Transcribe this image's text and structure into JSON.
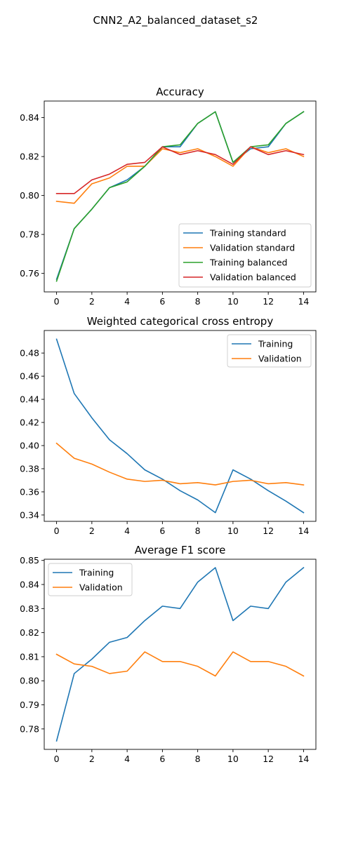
{
  "figure": {
    "suptitle": "CNN2_A2_balanced_dataset_s2"
  },
  "colors": {
    "blue": "#1f77b4",
    "orange": "#ff7f0e",
    "green": "#2ca02c",
    "red": "#d62728"
  },
  "chart_data": [
    {
      "type": "line",
      "title": "Accuracy",
      "xlabel": "",
      "ylabel": "",
      "x": [
        0,
        1,
        2,
        3,
        4,
        5,
        6,
        7,
        8,
        9,
        10,
        11,
        12,
        13,
        14
      ],
      "xlim": [
        -0.7,
        14.7
      ],
      "ylim": [
        0.7505,
        0.8485
      ],
      "xticks": [
        0,
        2,
        4,
        6,
        8,
        10,
        12,
        14
      ],
      "yticks": [
        0.76,
        0.78,
        0.8,
        0.82,
        0.84
      ],
      "ytick_labels": [
        "0.76",
        "0.78",
        "0.80",
        "0.82",
        "0.84"
      ],
      "grid": false,
      "legend": "lower-right",
      "series": [
        {
          "name": "Training standard",
          "color": "#1f77b4",
          "values": [
            0.757,
            0.783,
            0.793,
            0.804,
            0.808,
            0.815,
            0.825,
            0.825,
            0.837,
            0.843,
            0.817,
            0.824,
            0.825,
            0.837,
            0.843
          ]
        },
        {
          "name": "Validation standard",
          "color": "#ff7f0e",
          "values": [
            0.797,
            0.796,
            0.806,
            0.809,
            0.815,
            0.815,
            0.824,
            0.822,
            0.824,
            0.82,
            0.815,
            0.825,
            0.822,
            0.824,
            0.82
          ]
        },
        {
          "name": "Training balanced",
          "color": "#2ca02c",
          "values": [
            0.756,
            0.783,
            0.793,
            0.804,
            0.807,
            0.815,
            0.825,
            0.826,
            0.837,
            0.843,
            0.817,
            0.825,
            0.826,
            0.837,
            0.843
          ]
        },
        {
          "name": "Validation balanced",
          "color": "#d62728",
          "values": [
            0.801,
            0.801,
            0.808,
            0.811,
            0.816,
            0.817,
            0.825,
            0.821,
            0.823,
            0.821,
            0.816,
            0.825,
            0.821,
            0.823,
            0.821
          ]
        }
      ]
    },
    {
      "type": "line",
      "title": "Weighted categorical cross entropy",
      "xlabel": "",
      "ylabel": "",
      "x": [
        0,
        1,
        2,
        3,
        4,
        5,
        6,
        7,
        8,
        9,
        10,
        11,
        12,
        13,
        14
      ],
      "xlim": [
        -0.7,
        14.7
      ],
      "ylim": [
        0.3345,
        0.4995
      ],
      "xticks": [
        0,
        2,
        4,
        6,
        8,
        10,
        12,
        14
      ],
      "yticks": [
        0.34,
        0.36,
        0.38,
        0.4,
        0.42,
        0.44,
        0.46,
        0.48
      ],
      "ytick_labels": [
        "0.34",
        "0.36",
        "0.38",
        "0.40",
        "0.42",
        "0.44",
        "0.46",
        "0.48"
      ],
      "grid": false,
      "legend": "upper-right",
      "series": [
        {
          "name": "Training",
          "color": "#1f77b4",
          "values": [
            0.492,
            0.445,
            0.424,
            0.405,
            0.393,
            0.379,
            0.371,
            0.361,
            0.353,
            0.342,
            0.379,
            0.371,
            0.361,
            0.352,
            0.342
          ]
        },
        {
          "name": "Validation",
          "color": "#ff7f0e",
          "values": [
            0.402,
            0.389,
            0.384,
            0.377,
            0.371,
            0.369,
            0.37,
            0.367,
            0.368,
            0.366,
            0.369,
            0.37,
            0.367,
            0.368,
            0.366
          ]
        }
      ]
    },
    {
      "type": "line",
      "title": "Average F1 score",
      "xlabel": "",
      "ylabel": "",
      "x": [
        0,
        1,
        2,
        3,
        4,
        5,
        6,
        7,
        8,
        9,
        10,
        11,
        12,
        13,
        14
      ],
      "xlim": [
        -0.7,
        14.7
      ],
      "ylim": [
        0.7715,
        0.8505
      ],
      "xticks": [
        0,
        2,
        4,
        6,
        8,
        10,
        12,
        14
      ],
      "yticks": [
        0.78,
        0.79,
        0.8,
        0.81,
        0.82,
        0.83,
        0.84,
        0.85
      ],
      "ytick_labels": [
        "0.78",
        "0.79",
        "0.80",
        "0.81",
        "0.82",
        "0.83",
        "0.84",
        "0.85"
      ],
      "grid": false,
      "legend": "upper-left",
      "series": [
        {
          "name": "Training",
          "color": "#1f77b4",
          "values": [
            0.775,
            0.803,
            0.809,
            0.816,
            0.818,
            0.825,
            0.831,
            0.83,
            0.841,
            0.847,
            0.825,
            0.831,
            0.83,
            0.841,
            0.847
          ]
        },
        {
          "name": "Validation",
          "color": "#ff7f0e",
          "values": [
            0.811,
            0.807,
            0.806,
            0.803,
            0.804,
            0.812,
            0.808,
            0.808,
            0.806,
            0.802,
            0.812,
            0.808,
            0.808,
            0.806,
            0.802
          ]
        }
      ]
    }
  ]
}
